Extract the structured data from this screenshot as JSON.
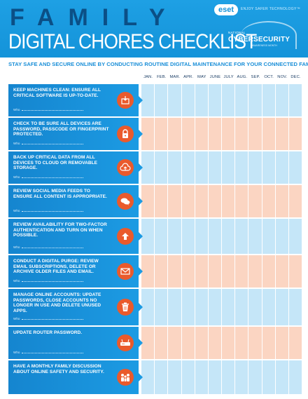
{
  "header": {
    "title_word": "FAMILY",
    "subtitle": "DIGITAL CHORES CHECKLIST",
    "eset_logo": "eset",
    "eset_tagline": "ENJOY SAFER TECHNOLOGY™",
    "ncsam_national": "NATIONAL",
    "ncsam_cyber": "CYBERSECURITY",
    "ncsam_awareness": "AWARENESS MONTH"
  },
  "tagline": "STAY SAFE AND SECURE ONLINE BY CONDUCTING ROUTINE DIGITAL MAINTENANCE FOR YOUR CONNECTED FAMILY.",
  "months": [
    "JAN.",
    "FEB.",
    "MAR.",
    "APR.",
    "MAY",
    "JUNE",
    "JULY",
    "AUG.",
    "SEP.",
    "OCT.",
    "NOV.",
    "DEC."
  ],
  "who_label": "Who",
  "colors": {
    "task_bg": "#1c9be3",
    "icon_bg": "#ea5a2c",
    "blue_cell": "#c5e6f8",
    "orange_cell": "#fbd5c2",
    "title_dark": "#0b4f86"
  },
  "tasks": [
    {
      "text": "KEEP MACHINES CLEAN: ENSURE ALL CRITICAL SOFTWARE IS UP-TO-DATE.",
      "icon": "software-update-icon",
      "who": true
    },
    {
      "text": "CHECK TO BE SURE ALL DEVICES ARE PASSWORD, PASSCODE OR FINGERPRINT PROTECTED.",
      "icon": "padlock-icon",
      "who": true
    },
    {
      "text": "BACK UP CRITICAL DATA FROM ALL DEVICES TO CLOUD OR REMOVABLE STORAGE.",
      "icon": "cloud-backup-icon",
      "who": true
    },
    {
      "text": "REVIEW SOCIAL MEDIA FEEDS TO ENSURE ALL CONTENT IS APPROPRIATE.",
      "icon": "chat-bubbles-icon",
      "who": true
    },
    {
      "text": "REVIEW AVAILABILITY FOR TWO-FACTOR AUTHENTICATION AND TURN ON WHEN POSSIBLE.",
      "icon": "two-factor-arrows-icon",
      "who": true
    },
    {
      "text": "CONDUCT A DIGITAL PURGE: REVIEW EMAIL SUBSCRIPTIONS, DELETE OR ARCHIVE OLDER FILES AND EMAIL.",
      "icon": "envelope-icon",
      "who": true
    },
    {
      "text": "MANAGE ONLINE ACCOUNTS: UPDATE PASSWORDS, CLOSE ACCOUNTS NO LONGER IN USE AND DELETE UNUSED APPS.",
      "icon": "trash-icon",
      "who": true
    },
    {
      "text": "UPDATE ROUTER PASSWORD.",
      "icon": "router-icon",
      "who": true
    },
    {
      "text": "HAVE A MONTHLY FAMILY DISCUSSION ABOUT ONLINE SAFETY AND SECURITY.",
      "icon": "family-icon",
      "who": false
    }
  ]
}
